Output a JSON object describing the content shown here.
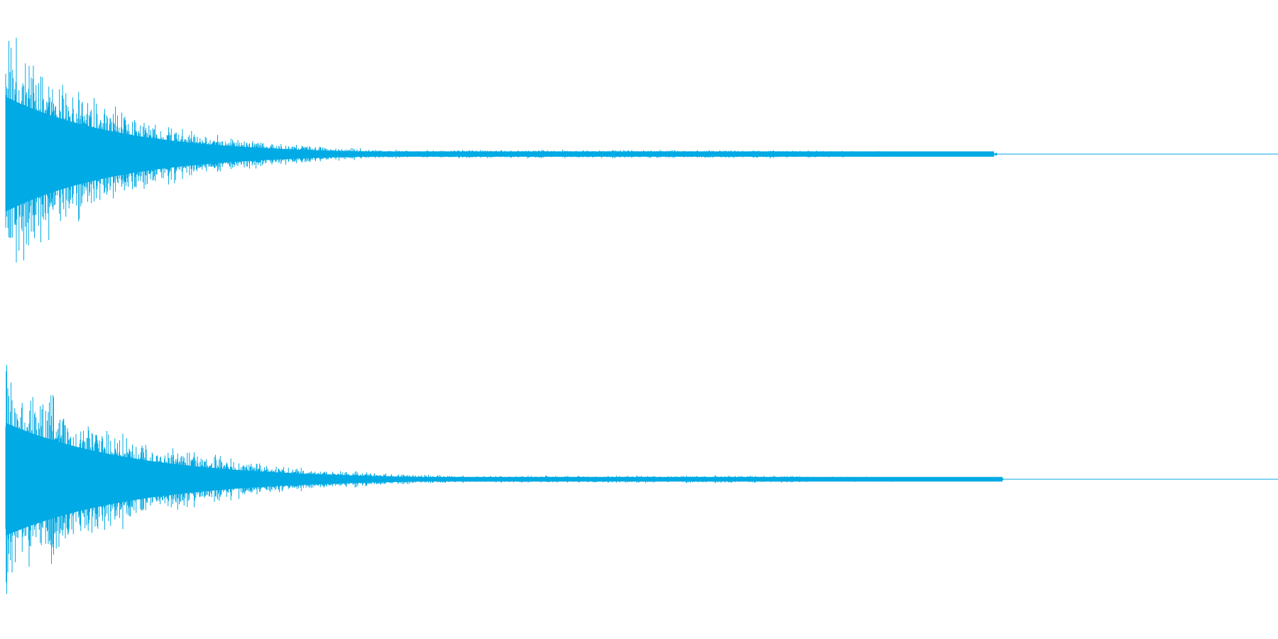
{
  "waveform": {
    "color": "#00aae4",
    "background": "#ffffff",
    "channel_count": 2,
    "channels": [
      {
        "label": "",
        "seed": 17,
        "decay": 0.0062,
        "peak": 1.0,
        "tail_level": 0.035,
        "tail_end_fraction": 0.78
      },
      {
        "label": "",
        "seed": 91,
        "decay": 0.0055,
        "peak": 0.98,
        "tail_level": 0.03,
        "tail_end_fraction": 0.785
      }
    ]
  }
}
